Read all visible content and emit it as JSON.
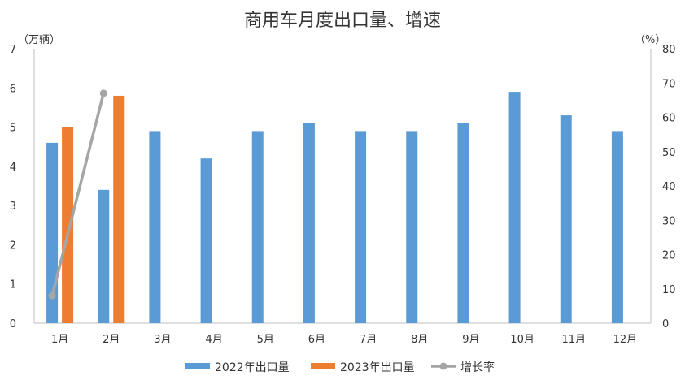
{
  "chart_data": {
    "type": "bar",
    "title": "商用车月度出口量、增速",
    "y_left_unit": "（万辆）",
    "y_right_unit": "（%）",
    "categories": [
      "1月",
      "2月",
      "3月",
      "4月",
      "5月",
      "6月",
      "7月",
      "8月",
      "9月",
      "10月",
      "11月",
      "12月"
    ],
    "y_left_ticks": [
      "0",
      "1",
      "2",
      "3",
      "4",
      "5",
      "6",
      "7"
    ],
    "y_right_ticks": [
      "0",
      "10",
      "20",
      "30",
      "40",
      "50",
      "60",
      "70",
      "80"
    ],
    "ylim_left": [
      0,
      7
    ],
    "ylim_right": [
      0,
      80
    ],
    "series": [
      {
        "name": "2022年出口量",
        "kind": "bar",
        "axis": "left",
        "color": "#5B9BD5",
        "values": [
          4.6,
          3.4,
          4.9,
          4.2,
          4.9,
          5.1,
          4.9,
          4.9,
          5.1,
          5.9,
          5.3,
          4.9
        ]
      },
      {
        "name": "2023年出口量",
        "kind": "bar",
        "axis": "left",
        "color": "#ED7D31",
        "values": [
          5.0,
          5.8,
          null,
          null,
          null,
          null,
          null,
          null,
          null,
          null,
          null,
          null
        ]
      },
      {
        "name": "增长率",
        "kind": "line",
        "axis": "right",
        "color": "#A5A5A5",
        "values": [
          8,
          67,
          null,
          null,
          null,
          null,
          null,
          null,
          null,
          null,
          null,
          null
        ]
      }
    ],
    "legend": {
      "placement": "bottom"
    },
    "grid": false
  }
}
